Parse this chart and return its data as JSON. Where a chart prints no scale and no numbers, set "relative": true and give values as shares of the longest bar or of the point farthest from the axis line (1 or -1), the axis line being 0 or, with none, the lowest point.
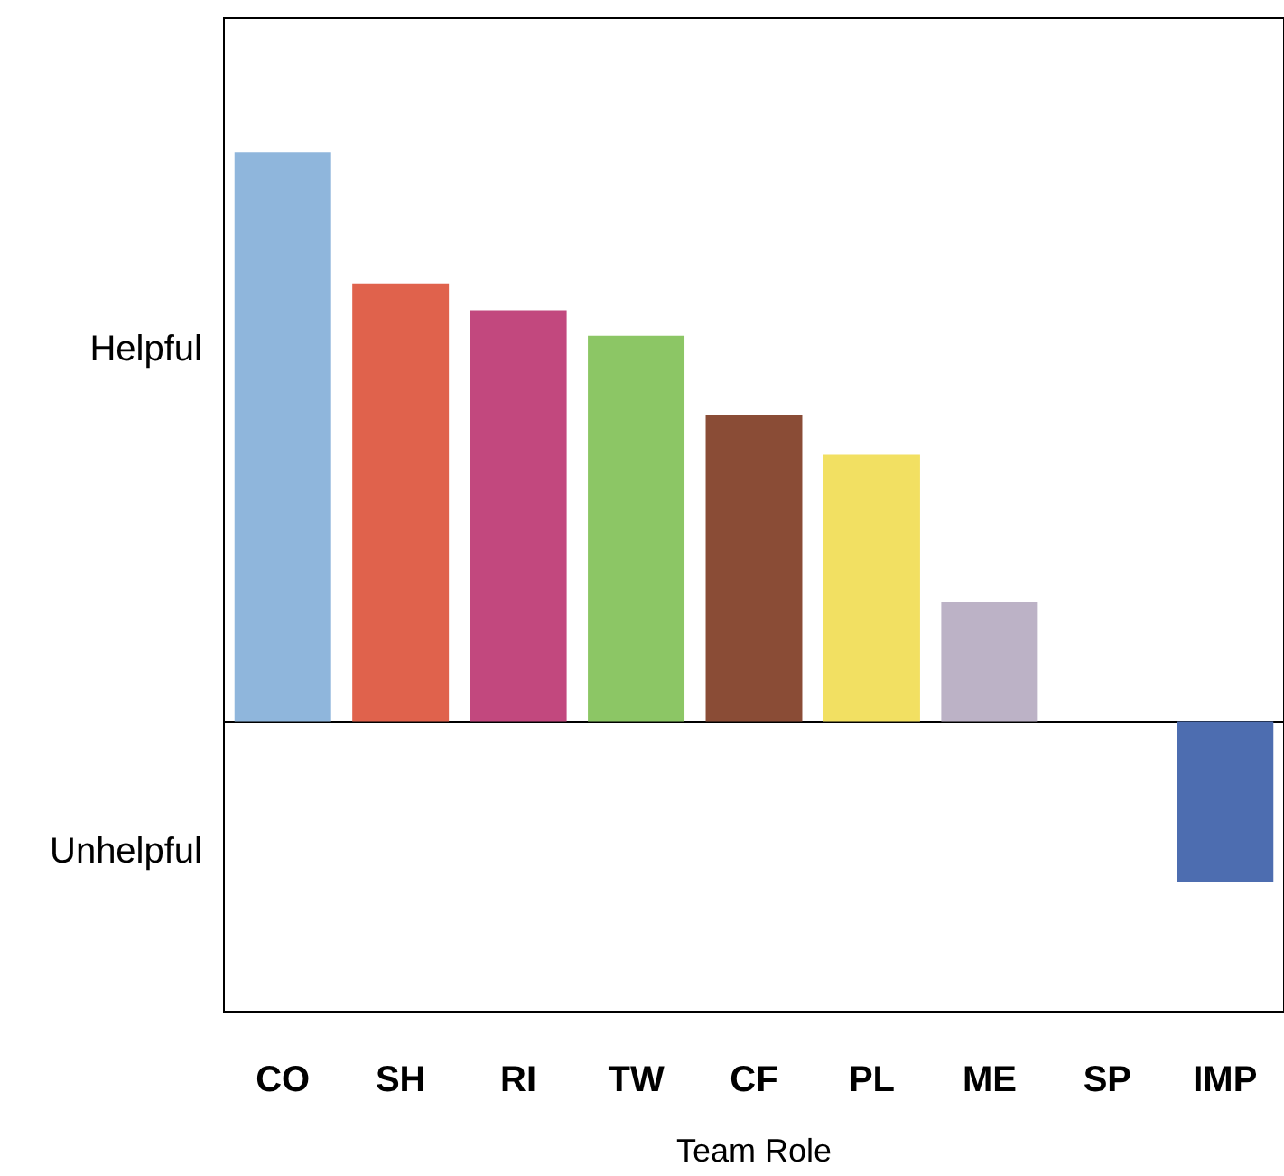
{
  "chart_data": {
    "type": "bar",
    "relative": true,
    "xlabel": "Team Role",
    "categories": [
      "CO",
      "SH",
      "RI",
      "TW",
      "CF",
      "PL",
      "ME",
      "SP",
      "IMP"
    ],
    "values": [
      1,
      0.769,
      0.722,
      0.677,
      0.538,
      0.468,
      0.209,
      0,
      -0.282
    ],
    "colors": [
      "#8fb6dc",
      "#e0624c",
      "#c2487e",
      "#8cc665",
      "#8a4c36",
      "#f2e062",
      "#bcb2c6",
      "#777777",
      "#4d6db0"
    ],
    "annotations": [
      "Helpful",
      "Unhelpful"
    ]
  }
}
